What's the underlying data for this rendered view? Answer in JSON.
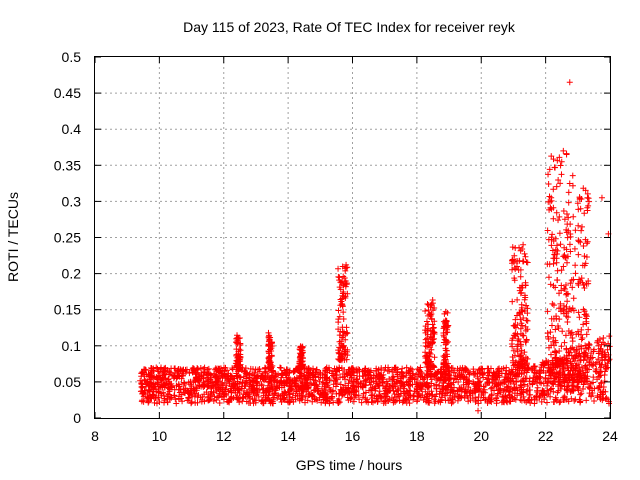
{
  "chart_data": {
    "type": "scatter",
    "title": "Day 115 of 2023, Rate Of TEC Index for receiver reyk",
    "xlabel": "GPS time / hours",
    "ylabel": "ROTI / TECUs",
    "xlim": [
      8,
      24
    ],
    "ylim": [
      0,
      0.5
    ],
    "grid": true,
    "marker": "+",
    "series": [
      {
        "name": "ROTI",
        "color": "#ff0000",
        "x_range": [
          9.4,
          24.0
        ],
        "baseline_band": [
          0.02,
          0.07
        ],
        "bursts": [
          {
            "x_center": 12.45,
            "x_width": 0.15,
            "y_min": 0.07,
            "y_max": 0.115
          },
          {
            "x_center": 13.45,
            "x_width": 0.12,
            "y_min": 0.07,
            "y_max": 0.12
          },
          {
            "x_center": 14.4,
            "x_width": 0.12,
            "y_min": 0.07,
            "y_max": 0.1
          },
          {
            "x_center": 15.7,
            "x_width": 0.3,
            "y_min": 0.08,
            "y_max": 0.21
          },
          {
            "x_center": 18.4,
            "x_width": 0.3,
            "y_min": 0.07,
            "y_max": 0.165
          },
          {
            "x_center": 18.9,
            "x_width": 0.15,
            "y_min": 0.07,
            "y_max": 0.15
          },
          {
            "x_center": 21.2,
            "x_width": 0.5,
            "y_min": 0.07,
            "y_max": 0.24
          },
          {
            "x_center": 22.7,
            "x_width": 1.3,
            "y_min": 0.05,
            "y_max": 0.37
          }
        ],
        "notable_points": [
          {
            "x": 22.75,
            "y": 0.465
          },
          {
            "x": 22.55,
            "y": 0.37
          },
          {
            "x": 22.65,
            "y": 0.365
          },
          {
            "x": 22.5,
            "y": 0.355
          },
          {
            "x": 22.45,
            "y": 0.325
          },
          {
            "x": 15.8,
            "y": 0.212
          },
          {
            "x": 23.3,
            "y": 0.305
          },
          {
            "x": 23.75,
            "y": 0.305
          },
          {
            "x": 23.95,
            "y": 0.255
          },
          {
            "x": 21.3,
            "y": 0.24
          },
          {
            "x": 19.9,
            "y": 0.01
          }
        ]
      }
    ],
    "xticks": [
      "8",
      "10",
      "12",
      "14",
      "16",
      "18",
      "20",
      "22",
      "24"
    ],
    "yticks": [
      "0",
      "0.05",
      "0.1",
      "0.15",
      "0.2",
      "0.25",
      "0.3",
      "0.35",
      "0.4",
      "0.45",
      "0.5"
    ]
  }
}
